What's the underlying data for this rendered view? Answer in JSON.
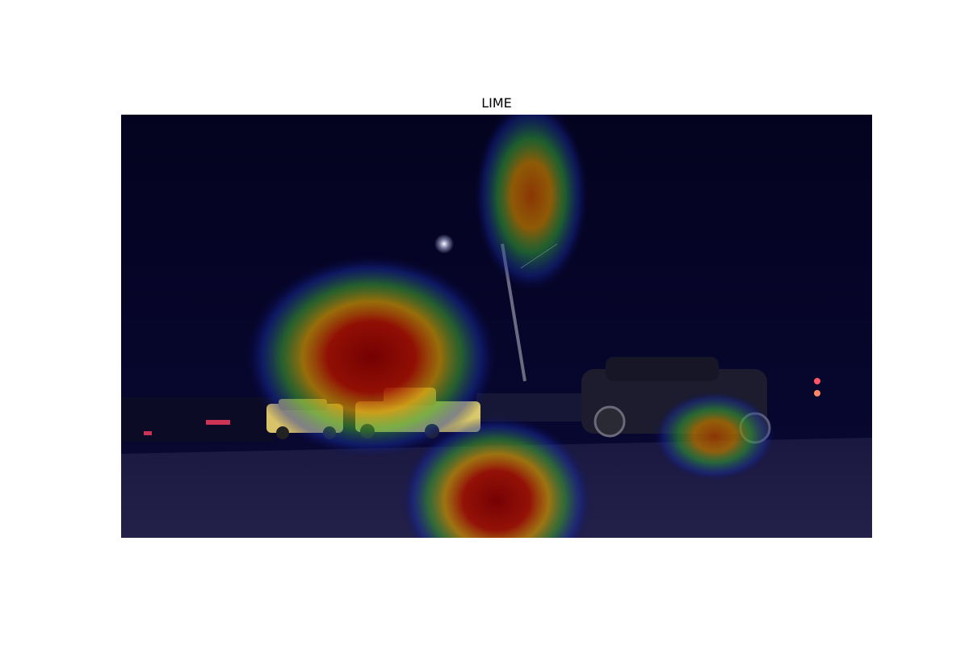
{
  "figure": {
    "title": "LIME"
  },
  "image": {
    "description_icon": "night-street-saliency-heatmap",
    "colors": {
      "background": "#ffffff",
      "sky": "#05042a",
      "road": "#1c1a3a",
      "heat_high": "#8b0000",
      "heat_mid": "#ffd400",
      "heat_low": "#2a8a3a",
      "heat_edge": "#1a2aa0"
    }
  }
}
